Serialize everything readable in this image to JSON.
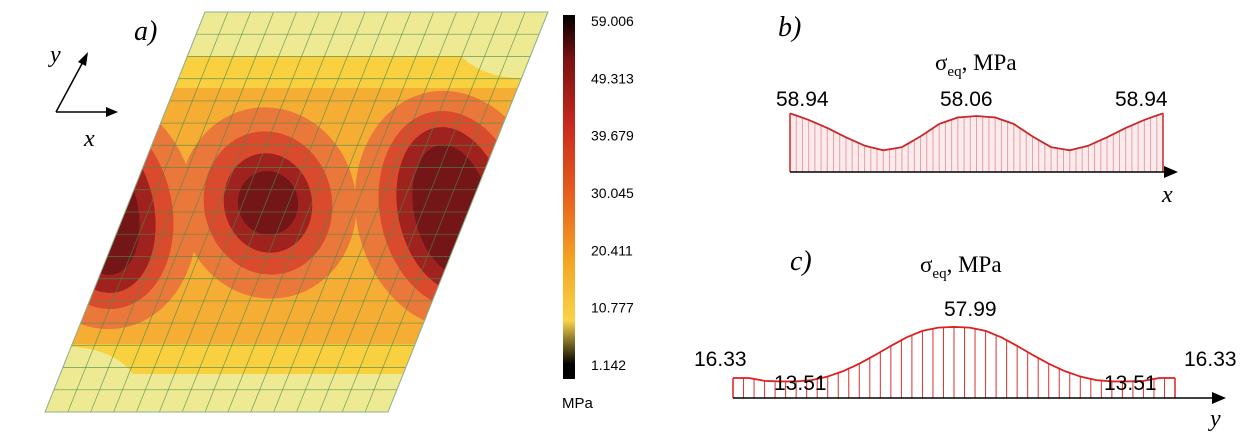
{
  "panel_a": {
    "label": "a)",
    "axis_x": "x",
    "axis_y": "y",
    "colorbar": {
      "ticks": [
        "59.006",
        "49.313",
        "39.679",
        "30.045",
        "20.411",
        "10.777",
        "1.142"
      ],
      "unit": "MPa",
      "colors": [
        "#000000",
        "#7a1010",
        "#c8281e",
        "#e8601e",
        "#f5a623",
        "#f8d34a",
        "#f0ef8c"
      ]
    },
    "colors": {
      "edge_band": "#eeea94",
      "light_band": "#f8d040",
      "mid_band": "#f5ad33",
      "lobe_outer": "#e9783a",
      "lobe_mid": "#d94b2c",
      "lobe_inner": "#a0221e",
      "lobe_core": "#741617",
      "mesh": "#4a8a4a"
    }
  },
  "panel_b": {
    "label": "b)",
    "title_sym": "σ",
    "title_sub": "eq",
    "title_rest": ", MPa",
    "axis_label": "x",
    "value_left": "58.94",
    "value_center": "58.06",
    "value_right": "58.94",
    "profile": [
      58.94,
      56.8,
      54.2,
      51.2,
      48.5,
      47.0,
      48.0,
      51.5,
      55.5,
      57.6,
      58.06,
      57.6,
      55.5,
      51.5,
      48.0,
      47.0,
      48.5,
      51.2,
      54.2,
      56.8,
      58.94
    ],
    "y_range": [
      40,
      60
    ],
    "line_color": "#c8282a",
    "hatch_color": "#e4a0a4"
  },
  "panel_c": {
    "label": "c)",
    "title_sym": "σ",
    "title_sub": "eq",
    "title_rest": ", MPa",
    "axis_label": "y",
    "value_left": "16.33",
    "value_left2": "13.51",
    "value_center": "57.99",
    "value_right2": "13.51",
    "value_right": "16.33",
    "profile": [
      16.33,
      16.33,
      14.0,
      13.51,
      13.51,
      14.6,
      17.5,
      22.0,
      28.0,
      35.0,
      42.5,
      49.5,
      54.8,
      57.4,
      57.99,
      57.4,
      54.8,
      49.5,
      42.5,
      35.0,
      28.0,
      22.0,
      17.5,
      14.6,
      13.51,
      13.51,
      14.0,
      16.33,
      16.33
    ],
    "y_range": [
      0,
      62
    ],
    "line_color": "#dd2020",
    "hatch_color": "#dd3030"
  }
}
